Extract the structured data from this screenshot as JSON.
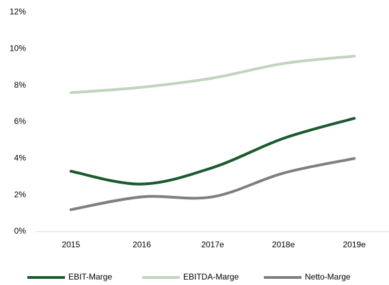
{
  "chart_data": {
    "type": "line",
    "categories": [
      "2015",
      "2016",
      "2017e",
      "2018e",
      "2019e"
    ],
    "series": [
      {
        "name": "EBIT-Marge",
        "color": "#1b5a2f",
        "values": [
          3.3,
          2.6,
          3.5,
          5.1,
          6.2
        ]
      },
      {
        "name": "EBITDA-Marge",
        "color": "#c2d3c0",
        "values": [
          7.6,
          7.9,
          8.4,
          9.2,
          9.6
        ]
      },
      {
        "name": "Netto-Marge",
        "color": "#7f7f7f",
        "values": [
          1.2,
          1.9,
          1.9,
          3.2,
          4.0
        ]
      }
    ],
    "ylim": [
      0,
      12
    ],
    "yticks": [
      {
        "value": 0,
        "label": "0%"
      },
      {
        "value": 2,
        "label": "2%"
      },
      {
        "value": 4,
        "label": "4%"
      },
      {
        "value": 6,
        "label": "6%"
      },
      {
        "value": 8,
        "label": "8%"
      },
      {
        "value": 10,
        "label": "10%"
      },
      {
        "value": 12,
        "label": "12%"
      }
    ],
    "grid": false,
    "legend": "bottom"
  }
}
